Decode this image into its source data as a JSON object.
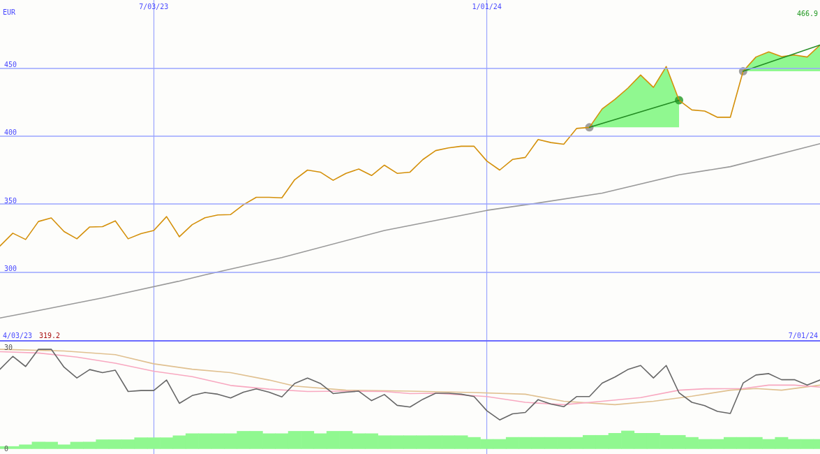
{
  "chart_data": [
    {
      "type": "line",
      "ylabel": "EUR",
      "marker": "none",
      "grid": true,
      "x": [
        "2023-04-10",
        "2023-04-17",
        "2023-04-24",
        "2023-05-01",
        "2023-05-08",
        "2023-05-15",
        "2023-05-22",
        "2023-05-29",
        "2023-06-05",
        "2023-06-12",
        "2023-06-19",
        "2023-06-26",
        "2023-07-03",
        "2023-07-10",
        "2023-07-17",
        "2023-07-24",
        "2023-07-31",
        "2023-08-07",
        "2023-08-14",
        "2023-08-21",
        "2023-08-28",
        "2023-09-04",
        "2023-09-11",
        "2023-09-18",
        "2023-09-25",
        "2023-10-02",
        "2023-10-09",
        "2023-10-16",
        "2023-10-23",
        "2023-10-30",
        "2023-11-06",
        "2023-11-13",
        "2023-11-20",
        "2023-11-27",
        "2023-12-04",
        "2023-12-11",
        "2023-12-18",
        "2023-12-25",
        "2024-01-01",
        "2024-01-08",
        "2024-01-15",
        "2024-01-22",
        "2024-01-29",
        "2024-02-05",
        "2024-02-12",
        "2024-02-19",
        "2024-02-26",
        "2024-03-04",
        "2024-03-11",
        "2024-03-18",
        "2024-03-25",
        "2024-04-01",
        "2024-04-08",
        "2024-04-15",
        "2024-04-22",
        "2024-04-29",
        "2024-05-06",
        "2024-05-13",
        "2024-05-20",
        "2024-05-27",
        "2024-06-03",
        "2024-06-10",
        "2024-06-17",
        "2024-06-24",
        "2024-07-01"
      ],
      "xlim": [
        "2023-04-10",
        "2024-07-01"
      ],
      "xticks": [
        {
          "value": "2023-07-03",
          "label": "7/03/23"
        },
        {
          "value": "2024-01-01",
          "label": "1/01/24"
        }
      ],
      "ylim": [
        250,
        500
      ],
      "yticks": [
        300,
        350,
        400,
        450
      ],
      "annotations": [
        "4/03/23",
        "319.2",
        "466.9",
        "7/01/24"
      ],
      "series": [
        {
          "color": "#999999",
          "x": [
            "2023-04-10",
            "2023-04-24",
            "2023-06-05",
            "2023-07-17",
            "2023-07-31",
            "2023-09-11",
            "2023-11-06",
            "2024-01-01",
            "2024-01-29",
            "2024-03-04",
            "2024-04-15",
            "2024-05-13",
            "2024-07-01"
          ],
          "values": [
            266.3,
            269.9,
            281.1,
            293.4,
            298.0,
            310.7,
            330.6,
            345.4,
            350.8,
            358.1,
            371.5,
            377.5,
            394.4
          ]
        },
        {
          "color": "#d4900a",
          "lower": [
            null,
            null,
            null,
            null,
            null,
            null,
            null,
            null,
            null,
            null,
            null,
            null,
            null,
            null,
            null,
            null,
            null,
            null,
            null,
            null,
            null,
            null,
            null,
            null,
            null,
            null,
            null,
            null,
            null,
            null,
            null,
            null,
            null,
            null,
            null,
            null,
            null,
            null,
            null,
            null,
            null,
            null,
            null,
            null,
            null,
            null,
            406.4,
            406.4,
            406.4,
            406.4,
            406.4,
            406.4,
            406.4,
            406.4,
            null,
            null,
            null,
            null,
            447.6,
            447.6,
            447.6,
            447.6,
            447.6,
            447.6,
            447.6
          ],
          "upper": [
            null,
            null,
            null,
            null,
            null,
            null,
            null,
            null,
            null,
            null,
            null,
            null,
            null,
            null,
            null,
            null,
            null,
            null,
            null,
            null,
            null,
            null,
            null,
            null,
            null,
            null,
            null,
            null,
            null,
            null,
            null,
            null,
            null,
            null,
            null,
            null,
            null,
            null,
            null,
            null,
            null,
            null,
            null,
            null,
            null,
            null,
            406.4,
            420.0,
            427.0,
            435.2,
            444.9,
            435.8,
            451.1,
            426.3,
            null,
            null,
            null,
            null,
            447.6,
            458.1,
            461.9,
            458.4,
            459.6,
            458.1,
            466.9
          ],
          "values": [
            319.2,
            328.6,
            324.0,
            337.2,
            339.8,
            329.8,
            324.5,
            333.2,
            333.4,
            337.7,
            324.5,
            328.3,
            330.6,
            340.8,
            326.0,
            334.9,
            340.0,
            342.0,
            342.3,
            349.5,
            355.0,
            355.0,
            354.6,
            367.9,
            375.0,
            373.5,
            367.5,
            372.6,
            375.8,
            371.0,
            378.6,
            372.6,
            373.5,
            382.7,
            389.3,
            391.3,
            392.5,
            392.5,
            381.6,
            375.0,
            382.8,
            384.3,
            397.5,
            395.2,
            394.0,
            405.6,
            406.4,
            420.0,
            427.0,
            435.2,
            444.9,
            435.8,
            451.1,
            426.3,
            419.2,
            418.4,
            413.8,
            413.8,
            447.6,
            458.1,
            461.9,
            458.4,
            459.6,
            458.1,
            466.9
          ]
        },
        {
          "color": "#228b22",
          "x": [
            "2024-02-26",
            "2024-04-15",
            "2024-04-29",
            "2024-05-20",
            "2024-07-01"
          ],
          "values": [
            406.4,
            426.3,
            null,
            447.6,
            466.9
          ]
        },
        {
          "type": "scatter",
          "marker": "circle",
          "color": "#888888",
          "x": [
            "2024-02-26",
            "2024-05-20"
          ],
          "values": [
            406.4,
            447.6
          ]
        },
        {
          "type": "scatter",
          "marker": "circle",
          "color": "#229922",
          "x": [
            "2024-04-15"
          ],
          "values": [
            426.3
          ]
        }
      ]
    },
    {
      "type": "line",
      "marker": "none",
      "grid": "x",
      "tick_labels": "y",
      "x": [
        "2023-04-10",
        "2023-04-17",
        "2023-04-24",
        "2023-05-01",
        "2023-05-08",
        "2023-05-15",
        "2023-05-22",
        "2023-05-29",
        "2023-06-05",
        "2023-06-12",
        "2023-06-19",
        "2023-06-26",
        "2023-07-03",
        "2023-07-10",
        "2023-07-17",
        "2023-07-24",
        "2023-07-31",
        "2023-08-07",
        "2023-08-14",
        "2023-08-21",
        "2023-08-28",
        "2023-09-04",
        "2023-09-11",
        "2023-09-18",
        "2023-09-25",
        "2023-10-02",
        "2023-10-09",
        "2023-10-16",
        "2023-10-23",
        "2023-10-30",
        "2023-11-06",
        "2023-11-13",
        "2023-11-20",
        "2023-11-27",
        "2023-12-04",
        "2023-12-11",
        "2023-12-18",
        "2023-12-25",
        "2024-01-01",
        "2024-01-08",
        "2024-01-15",
        "2024-01-22",
        "2024-01-29",
        "2024-02-05",
        "2024-02-12",
        "2024-02-19",
        "2024-02-26",
        "2024-03-04",
        "2024-03-11",
        "2024-03-18",
        "2024-03-25",
        "2024-04-01",
        "2024-04-08",
        "2024-04-15",
        "2024-04-22",
        "2024-04-29",
        "2024-05-06",
        "2024-05-13",
        "2024-05-20",
        "2024-05-27",
        "2024-06-03",
        "2024-06-10",
        "2024-06-17",
        "2024-06-24",
        "2024-07-01"
      ],
      "xlim": [
        "2023-04-10",
        "2024-07-01"
      ],
      "xticks": [
        {
          "value": "2023-07-03",
          "label": null
        },
        {
          "value": "2024-01-01",
          "label": null
        }
      ],
      "ylim": [
        -1.5,
        32
      ],
      "yticks": [
        0,
        30
      ],
      "series": [
        {
          "type": "bar",
          "color": "#90f890",
          "values": [
            0.8,
            0.8,
            1.3,
            2.1,
            2.1,
            1.3,
            2.1,
            2.1,
            2.8,
            2.8,
            2.8,
            3.4,
            3.4,
            3.4,
            4.0,
            4.6,
            4.6,
            4.6,
            4.6,
            5.3,
            5.3,
            4.6,
            4.6,
            5.3,
            5.3,
            4.6,
            5.3,
            5.3,
            4.6,
            4.6,
            4.0,
            4.0,
            4.0,
            4.0,
            4.0,
            4.0,
            4.0,
            3.5,
            2.9,
            2.9,
            3.5,
            3.5,
            3.5,
            3.5,
            3.5,
            3.5,
            4.1,
            4.1,
            4.7,
            5.4,
            4.7,
            4.7,
            4.1,
            4.1,
            3.5,
            2.9,
            2.9,
            3.5,
            3.5,
            3.5,
            2.9,
            3.5,
            2.9,
            2.9,
            2.9
          ]
        },
        {
          "color": "#e0c090",
          "x": [
            "2023-04-10",
            "2023-05-15",
            "2023-06-12",
            "2023-07-03",
            "2023-07-24",
            "2023-08-14",
            "2023-09-04",
            "2023-09-18",
            "2023-10-16",
            "2023-11-20",
            "2023-12-25",
            "2024-01-22",
            "2024-02-12",
            "2024-03-11",
            "2024-04-01",
            "2024-04-22",
            "2024-05-13",
            "2024-05-27",
            "2024-06-10",
            "2024-07-01"
          ],
          "values": [
            29.5,
            29.0,
            27.9,
            25.2,
            23.6,
            22.6,
            20.4,
            18.6,
            17.4,
            17.1,
            16.7,
            16.2,
            14.1,
            13.1,
            14.1,
            15.6,
            17.4,
            17.9,
            17.4,
            18.9
          ]
        },
        {
          "color": "#f8a8c0",
          "x": [
            "2023-04-10",
            "2023-05-01",
            "2023-05-22",
            "2023-06-12",
            "2023-07-03",
            "2023-07-24",
            "2023-08-14",
            "2023-09-04",
            "2023-09-25",
            "2023-10-16",
            "2023-11-06",
            "2023-11-20",
            "2023-12-04",
            "2024-01-01",
            "2024-01-22",
            "2024-02-12",
            "2024-03-04",
            "2024-03-25",
            "2024-04-15",
            "2024-04-29",
            "2024-05-20",
            "2024-06-03",
            "2024-06-17",
            "2024-07-01"
          ],
          "values": [
            28.8,
            28.4,
            27.2,
            25.4,
            23.0,
            21.4,
            18.8,
            17.7,
            17.0,
            17.1,
            17.0,
            16.4,
            16.5,
            15.5,
            13.8,
            13.1,
            14.1,
            15.2,
            17.4,
            17.8,
            17.9,
            18.9,
            18.9,
            18.3
          ]
        },
        {
          "color": "#666666",
          "values": [
            23.6,
            27.4,
            24.4,
            29.5,
            29.5,
            24.2,
            21.0,
            23.5,
            22.6,
            23.3,
            17.0,
            17.3,
            17.3,
            20.4,
            13.5,
            15.8,
            16.7,
            16.2,
            15.1,
            16.8,
            17.8,
            16.8,
            15.4,
            19.4,
            21.0,
            19.4,
            16.4,
            16.8,
            17.1,
            14.3,
            16.1,
            12.9,
            12.4,
            14.7,
            16.5,
            16.5,
            16.2,
            15.5,
            11.3,
            8.6,
            10.4,
            10.8,
            14.6,
            13.3,
            12.5,
            15.5,
            15.5,
            19.5,
            21.3,
            23.5,
            24.7,
            21.0,
            24.7,
            16.6,
            13.8,
            12.8,
            11.1,
            10.5,
            19.5,
            21.9,
            22.3,
            20.5,
            20.5,
            18.9,
            20.4
          ]
        }
      ]
    }
  ]
}
